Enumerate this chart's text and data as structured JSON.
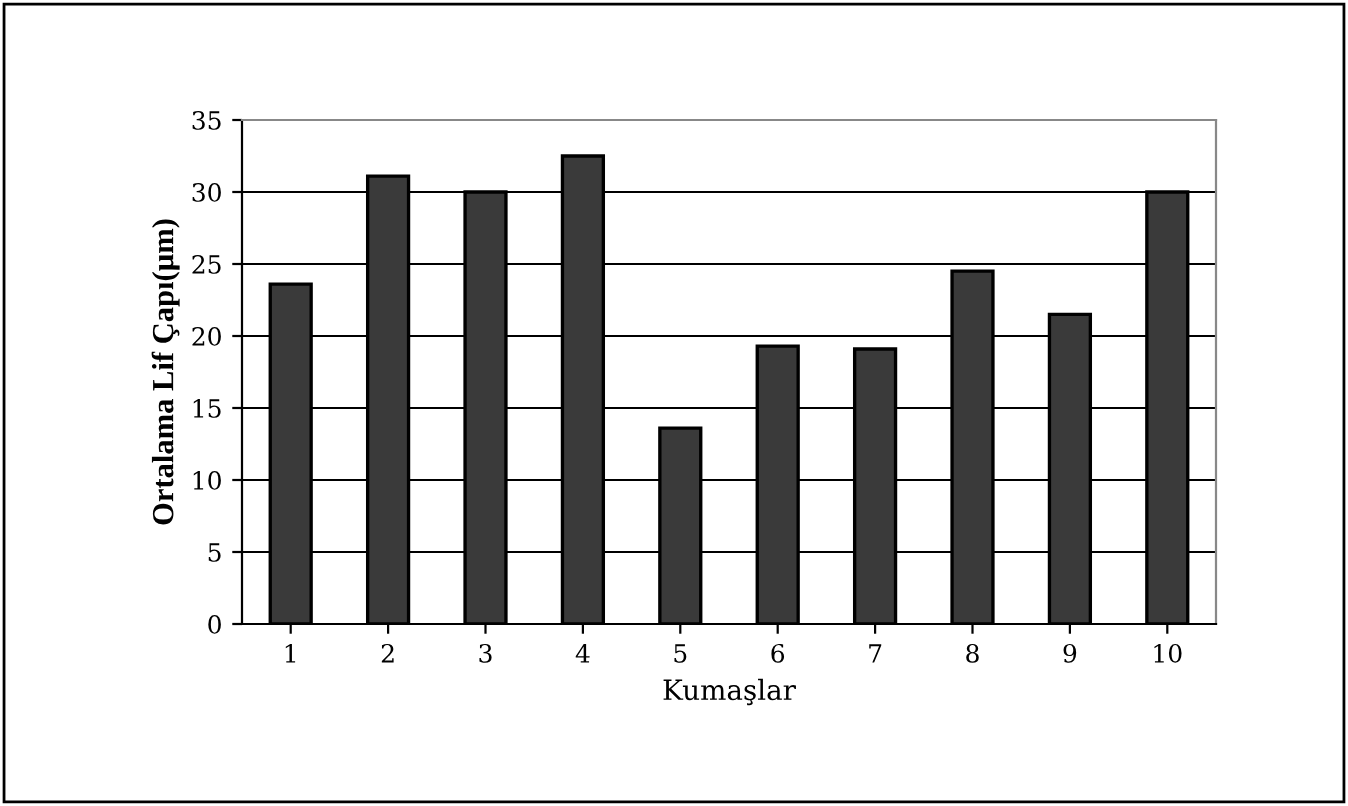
{
  "chart_data": {
    "type": "bar",
    "xlabel": "Kumaşlar",
    "ylabel": "Ortalama Lif Çapı(µm)",
    "categories": [
      "1",
      "2",
      "3",
      "4",
      "5",
      "6",
      "7",
      "8",
      "9",
      "10"
    ],
    "values": [
      23.6,
      31.1,
      30.0,
      32.5,
      13.6,
      19.3,
      19.1,
      24.5,
      21.5,
      30.0
    ],
    "color": "#3a3a3a",
    "ylim": [
      0,
      35
    ],
    "yticks": [
      0,
      5,
      10,
      15,
      20,
      25,
      30,
      35
    ],
    "grid": "y"
  }
}
